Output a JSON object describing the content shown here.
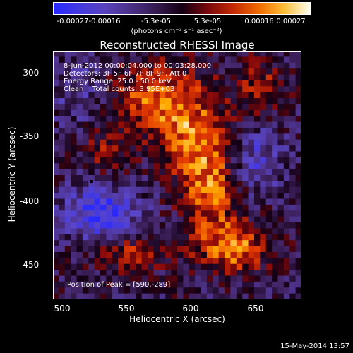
{
  "colorbar": {
    "range": [
      -0.00027,
      0.00027
    ],
    "ticks": [
      "-0.00027",
      "-0.00016",
      "-5.3e-05",
      "5.3e-05",
      "0.00016",
      "0.00027"
    ],
    "label": "(photons cm⁻² s⁻¹ asec⁻²)"
  },
  "chart_data": {
    "type": "heatmap",
    "title": "Reconstructed RHESSI Image",
    "xlabel": "Heliocentric X (arcsec)",
    "ylabel": "Heliocentric Y (arcsec)",
    "xlim": [
      495,
      685
    ],
    "ylim": [
      -478,
      -288
    ],
    "xticks": [
      "500",
      "550",
      "600",
      "650"
    ],
    "yticks": [
      "-300",
      "-350",
      "-400",
      "-450"
    ],
    "annotations": [
      "8-Jun-2012 00:00:04.000 to 00:03:28.000",
      "Detectors: 3F 5F 6F 7F 8F 9F, Att 0",
      "Energy Range: 25.0 - 50.0 keV",
      "Clean    Total counts: 3.95E+03"
    ],
    "peak_label": "Position of Peak = [590,-289]",
    "peak": [
      590,
      -289
    ]
  },
  "timestamp": "15-May-2014 13:57"
}
